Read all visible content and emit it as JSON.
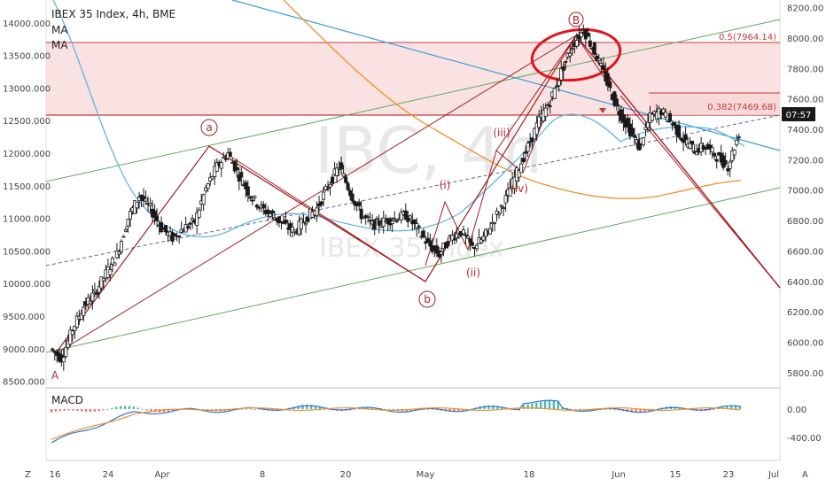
{
  "header": {
    "title": "IBEX 35 Index, 4h, BME",
    "indicators": [
      "MA",
      "MA"
    ]
  },
  "watermark": {
    "symbol": "IBC, 4h",
    "name": "IBEX 35 Index"
  },
  "colors": {
    "wave": "#a51c20",
    "channel": "#5fa85f",
    "trendline": "#3ba0d8",
    "ma_fast": "#5fb6e0",
    "ma_slow": "#f0902a",
    "zone_fill": "#f9d6d6",
    "candle": "#1a1a1a",
    "macd_line": "#2b7bd6",
    "signal_line": "#f0902a",
    "hist_up": "#26a69a",
    "hist_down": "#ef5350"
  },
  "right_axis": {
    "ticks": [
      "8200.00",
      "8000.00",
      "7800.00",
      "7600.00",
      "7400.00",
      "7200.00",
      "7000.00",
      "6800.00",
      "6600.00",
      "6400.00",
      "6200.00",
      "6000.00",
      "5800.00"
    ],
    "price_tag": "07:57"
  },
  "fib_labels": [
    "0.5(7964.14)",
    "0.382(7469.68)"
  ],
  "macd": {
    "title": "MACD",
    "ticks": [
      "0.00",
      "-400.00"
    ]
  },
  "bottom": {
    "corner_left": "Z",
    "corner_right": "A"
  },
  "chart_data": {
    "type": "candlestick",
    "title": "IBEX 35 Index, 4h, BME",
    "left_axis": {
      "ticks": [
        "14000.000",
        "13500.000",
        "13000.000",
        "12500.000",
        "12000.000",
        "11500.000",
        "11000.000",
        "10500.000",
        "10000.000",
        "9500.000",
        "9000.000",
        "8500.000"
      ],
      "range": [
        8400,
        14350
      ]
    },
    "right_axis_range": [
      5700,
      8250
    ],
    "x_ticks": [
      "16",
      "24",
      "Apr",
      "8",
      "20",
      "May",
      "18",
      "Jun",
      "15",
      "23",
      "Jul"
    ],
    "close_path": [
      [
        0,
        9000
      ],
      [
        1,
        8850
      ],
      [
        2,
        9300
      ],
      [
        3,
        9650
      ],
      [
        4,
        9850
      ],
      [
        5,
        10150
      ],
      [
        6,
        10450
      ],
      [
        7,
        11000
      ],
      [
        8,
        11350
      ],
      [
        9,
        11150
      ],
      [
        10,
        10850
      ],
      [
        11,
        10700
      ],
      [
        12,
        10850
      ],
      [
        13,
        10950
      ],
      [
        14,
        11450
      ],
      [
        15,
        11800
      ],
      [
        16,
        12000
      ],
      [
        17,
        11650
      ],
      [
        18,
        11350
      ],
      [
        19,
        11150
      ],
      [
        20,
        11050
      ],
      [
        21,
        10900
      ],
      [
        22,
        10800
      ],
      [
        23,
        11000
      ],
      [
        24,
        11150
      ],
      [
        25,
        11500
      ],
      [
        26,
        11800
      ],
      [
        27,
        11400
      ],
      [
        28,
        11050
      ],
      [
        29,
        10900
      ],
      [
        30,
        10950
      ],
      [
        31,
        11000
      ],
      [
        32,
        11050
      ],
      [
        33,
        10850
      ],
      [
        34,
        10600
      ],
      [
        35,
        10450
      ],
      [
        36,
        10700
      ],
      [
        37,
        10800
      ],
      [
        38,
        10550
      ],
      [
        39,
        10700
      ],
      [
        40,
        11000
      ],
      [
        41,
        11300
      ],
      [
        42,
        11700
      ],
      [
        43,
        12100
      ],
      [
        44,
        12500
      ],
      [
        45,
        12800
      ],
      [
        46,
        13250
      ],
      [
        47,
        13650
      ],
      [
        48,
        13900
      ],
      [
        49,
        13550
      ],
      [
        50,
        13150
      ],
      [
        51,
        12700
      ],
      [
        52,
        12400
      ],
      [
        53,
        12100
      ],
      [
        54,
        12550
      ],
      [
        55,
        12650
      ],
      [
        56,
        12450
      ],
      [
        57,
        12200
      ],
      [
        58,
        12050
      ],
      [
        59,
        12100
      ],
      [
        60,
        11950
      ],
      [
        61,
        11800
      ],
      [
        62,
        12300
      ]
    ],
    "wave_labels": [
      "A",
      "a",
      "b",
      "B",
      "(i)",
      "(ii)",
      "(iii)",
      "(iv)"
    ],
    "horizontal_levels": [
      13700,
      12600
    ],
    "macd_hist_range": [
      -800,
      300
    ]
  }
}
